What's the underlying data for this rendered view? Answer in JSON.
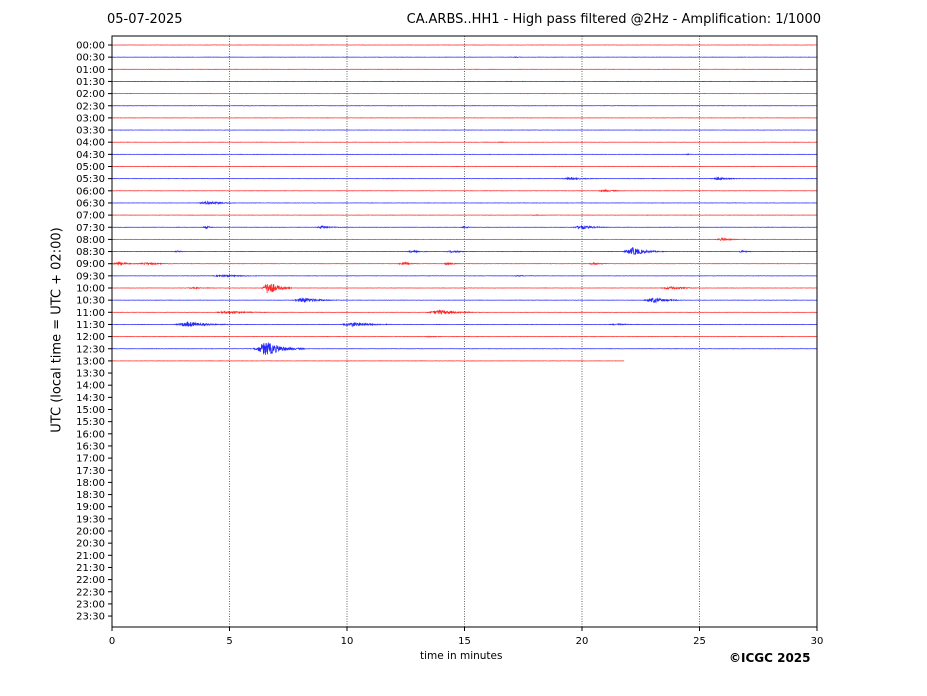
{
  "header": {
    "date": "05-07-2025",
    "title": "CA.ARBS..HH1 - High pass filtered @2Hz - Amplification: 1/1000"
  },
  "footer": {
    "copyright": "©ICGC 2025"
  },
  "chart_data": {
    "type": "line",
    "xlabel": "time in minutes",
    "ylabel": "UTC (local time = UTC + 02:00)",
    "xlim": [
      0,
      30
    ],
    "x_ticks": [
      "0",
      "5",
      "10",
      "15",
      "20",
      "25",
      "30"
    ],
    "y_ticks": [
      "00:00",
      "00:30",
      "01:00",
      "01:30",
      "02:00",
      "02:30",
      "03:00",
      "03:30",
      "04:00",
      "04:30",
      "05:00",
      "05:30",
      "06:00",
      "06:30",
      "07:00",
      "07:30",
      "08:00",
      "08:30",
      "09:00",
      "09:30",
      "10:00",
      "10:30",
      "11:00",
      "11:30",
      "12:00",
      "12:30",
      "13:00",
      "13:30",
      "14:00",
      "14:30",
      "15:00",
      "15:30",
      "16:00",
      "16:30",
      "17:00",
      "17:30",
      "18:00",
      "18:30",
      "19:00",
      "19:30",
      "20:00",
      "20:30",
      "21:00",
      "21:30",
      "22:00",
      "22:30",
      "23:00",
      "23:30"
    ],
    "grid": "vertical dotted",
    "series_colors": {
      "hour_start": "#ff0000",
      "half_hour": "#0000ff"
    },
    "traces": [
      {
        "time": "00:00",
        "end_minute": 30,
        "events": []
      },
      {
        "time": "00:30",
        "end_minute": 30,
        "events": [
          {
            "minute": 17.2,
            "amplitude": 0.08,
            "duration": 0.3
          }
        ]
      },
      {
        "time": "01:00",
        "end_minute": 30,
        "events": []
      },
      {
        "time": "01:30",
        "end_minute": 30,
        "events": []
      },
      {
        "time": "02:00",
        "end_minute": 30,
        "events": []
      },
      {
        "time": "02:30",
        "end_minute": 30,
        "events": []
      },
      {
        "time": "03:00",
        "end_minute": 30,
        "events": []
      },
      {
        "time": "03:30",
        "end_minute": 30,
        "events": []
      },
      {
        "time": "04:00",
        "end_minute": 30,
        "events": [
          {
            "minute": 16.5,
            "amplitude": 0.04,
            "duration": 0.5
          }
        ]
      },
      {
        "time": "04:30",
        "end_minute": 30,
        "events": [
          {
            "minute": 24.5,
            "amplitude": 0.05,
            "duration": 0.4
          }
        ]
      },
      {
        "time": "05:00",
        "end_minute": 30,
        "events": []
      },
      {
        "time": "05:30",
        "end_minute": 30,
        "events": [
          {
            "minute": 19.5,
            "amplitude": 0.15,
            "duration": 1.5
          },
          {
            "minute": 25.8,
            "amplitude": 0.18,
            "duration": 1.2
          }
        ]
      },
      {
        "time": "06:00",
        "end_minute": 30,
        "events": [
          {
            "minute": 21.0,
            "amplitude": 0.12,
            "duration": 1.2
          }
        ]
      },
      {
        "time": "06:30",
        "end_minute": 30,
        "events": [
          {
            "minute": 4.1,
            "amplitude": 0.25,
            "duration": 1.5
          }
        ]
      },
      {
        "time": "07:00",
        "end_minute": 30,
        "events": [
          {
            "minute": 18.0,
            "amplitude": 0.03,
            "duration": 1.0
          }
        ]
      },
      {
        "time": "07:30",
        "end_minute": 30,
        "events": [
          {
            "minute": 4.0,
            "amplitude": 0.18,
            "duration": 0.5
          },
          {
            "minute": 9.0,
            "amplitude": 0.2,
            "duration": 1.2
          },
          {
            "minute": 15.0,
            "amplitude": 0.15,
            "duration": 0.6
          },
          {
            "minute": 20.0,
            "amplitude": 0.28,
            "duration": 1.4
          }
        ]
      },
      {
        "time": "08:00",
        "end_minute": 30,
        "events": [
          {
            "minute": 26.0,
            "amplitude": 0.15,
            "duration": 1.2
          }
        ]
      },
      {
        "time": "08:30",
        "end_minute": 30,
        "events": [
          {
            "minute": 2.8,
            "amplitude": 0.1,
            "duration": 0.6
          },
          {
            "minute": 12.8,
            "amplitude": 0.12,
            "duration": 1.0
          },
          {
            "minute": 14.5,
            "amplitude": 0.12,
            "duration": 1.2
          },
          {
            "minute": 22.2,
            "amplitude": 0.55,
            "duration": 1.6
          },
          {
            "minute": 26.8,
            "amplitude": 0.15,
            "duration": 0.6
          }
        ]
      },
      {
        "time": "09:00",
        "end_minute": 30,
        "events": [
          {
            "minute": 0.3,
            "amplitude": 0.25,
            "duration": 1.0
          },
          {
            "minute": 1.5,
            "amplitude": 0.15,
            "duration": 1.5
          },
          {
            "minute": 12.4,
            "amplitude": 0.25,
            "duration": 0.9
          },
          {
            "minute": 14.3,
            "amplitude": 0.15,
            "duration": 0.8
          },
          {
            "minute": 20.5,
            "amplitude": 0.18,
            "duration": 0.8
          }
        ]
      },
      {
        "time": "09:30",
        "end_minute": 30,
        "events": [
          {
            "minute": 4.8,
            "amplitude": 0.15,
            "duration": 1.8
          },
          {
            "minute": 17.3,
            "amplitude": 0.06,
            "duration": 1.0
          }
        ]
      },
      {
        "time": "10:00",
        "end_minute": 30,
        "events": [
          {
            "minute": 6.7,
            "amplitude": 0.95,
            "duration": 1.2
          },
          {
            "minute": 3.5,
            "amplitude": 0.06,
            "duration": 1.5
          },
          {
            "minute": 23.8,
            "amplitude": 0.2,
            "duration": 1.6
          }
        ]
      },
      {
        "time": "10:30",
        "end_minute": 30,
        "events": [
          {
            "minute": 8.2,
            "amplitude": 0.35,
            "duration": 1.8
          },
          {
            "minute": 23.1,
            "amplitude": 0.35,
            "duration": 1.6
          }
        ]
      },
      {
        "time": "11:00",
        "end_minute": 30,
        "events": [
          {
            "minute": 5.0,
            "amplitude": 0.2,
            "duration": 2.0
          },
          {
            "minute": 14.0,
            "amplitude": 0.3,
            "duration": 2.2
          }
        ]
      },
      {
        "time": "11:30",
        "end_minute": 30,
        "events": [
          {
            "minute": 3.3,
            "amplitude": 0.35,
            "duration": 2.2
          },
          {
            "minute": 10.3,
            "amplitude": 0.3,
            "duration": 2.0
          },
          {
            "minute": 21.5,
            "amplitude": 0.1,
            "duration": 1.2
          }
        ]
      },
      {
        "time": "12:00",
        "end_minute": 30,
        "events": [
          {
            "minute": 13.5,
            "amplitude": 0.06,
            "duration": 0.8
          }
        ]
      },
      {
        "time": "12:30",
        "end_minute": 30,
        "events": [
          {
            "minute": 6.6,
            "amplitude": 1.0,
            "duration": 2.0
          }
        ]
      },
      {
        "time": "13:00",
        "end_minute": 21.8,
        "events": []
      }
    ]
  }
}
